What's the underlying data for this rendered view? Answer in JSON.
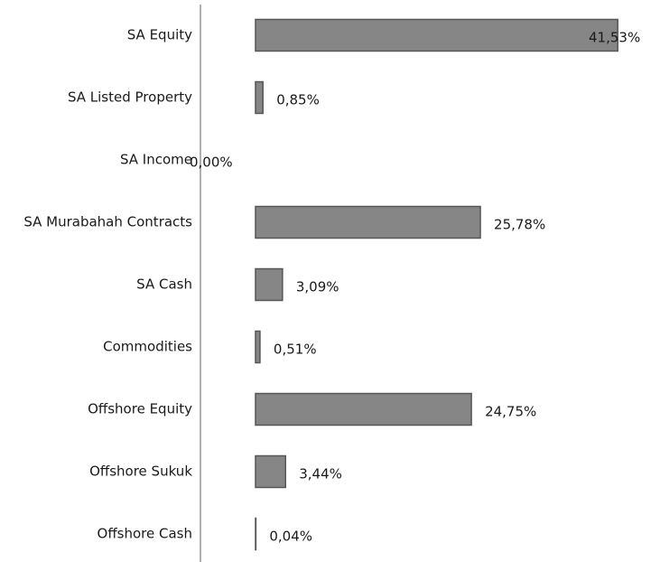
{
  "chart_data": {
    "type": "hbar",
    "categories": [
      "SA Equity",
      "SA Listed Property",
      "SA Income",
      "SA Murabahah Contracts",
      "SA Cash",
      "Commodities",
      "Offshore Equity",
      "Offshore Sukuk",
      "Offshore Cash"
    ],
    "values": [
      41.53,
      0.85,
      0,
      25.78,
      3.09,
      0.51,
      24.75,
      3.44,
      0.04
    ],
    "value_labels": [
      "41,53%",
      "0,85%",
      "0,00%",
      "25,78%",
      "3,09%",
      "0,51%",
      "24,75%",
      "3,44%",
      "0,04%"
    ],
    "color": "#868686"
  }
}
